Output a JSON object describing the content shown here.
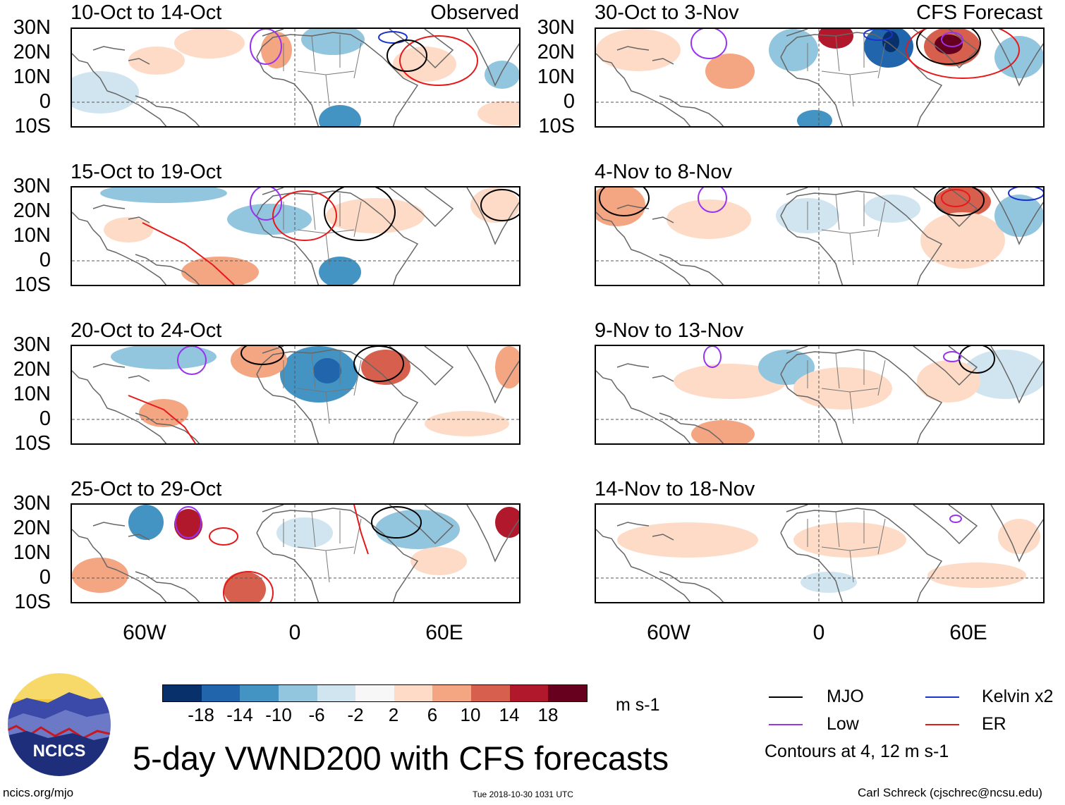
{
  "panels": [
    {
      "title": "10-Oct to 14-Oct",
      "tag": "Observed"
    },
    {
      "title": "15-Oct to 19-Oct",
      "tag": ""
    },
    {
      "title": "20-Oct to 24-Oct",
      "tag": ""
    },
    {
      "title": "25-Oct to 29-Oct",
      "tag": ""
    },
    {
      "title": "30-Oct to 3-Nov",
      "tag": "CFS Forecast"
    },
    {
      "title": "4-Nov to 8-Nov",
      "tag": ""
    },
    {
      "title": "9-Nov to 13-Nov",
      "tag": ""
    },
    {
      "title": "14-Nov to 18-Nov",
      "tag": ""
    }
  ],
  "lat_labels": [
    "30N",
    "20N",
    "10N",
    "0",
    "10S"
  ],
  "lon_labels": [
    "60W",
    "0",
    "60E"
  ],
  "colorbar": {
    "levels": [
      "-18",
      "-14",
      "-10",
      "-6",
      "-2",
      "2",
      "6",
      "10",
      "14",
      "18"
    ],
    "colors": [
      "#08306b",
      "#2166ac",
      "#4393c3",
      "#92c5de",
      "#d1e5f0",
      "#f7f7f7",
      "#fddbc7",
      "#f4a582",
      "#d6604d",
      "#b2182b",
      "#67001f"
    ],
    "units": "m s-1"
  },
  "legend": {
    "items": [
      {
        "label": "MJO",
        "color": "#000000"
      },
      {
        "label": "Kelvin x2",
        "color": "#1a33cc"
      },
      {
        "label": "Low",
        "color": "#9933ee"
      },
      {
        "label": "ER",
        "color": "#e6191a"
      }
    ],
    "contours_note": "Contours at 4, 12 m s-1"
  },
  "logo": {
    "text": "NCICS"
  },
  "main_title": "5-day VWND200 with CFS forecasts",
  "footer": {
    "url": "ncics.org/mjo",
    "timestamp": "Tue 2018-10-30 1031 UTC",
    "credit": "Carl Schreck (cjschrec@ncsu.edu)"
  }
}
